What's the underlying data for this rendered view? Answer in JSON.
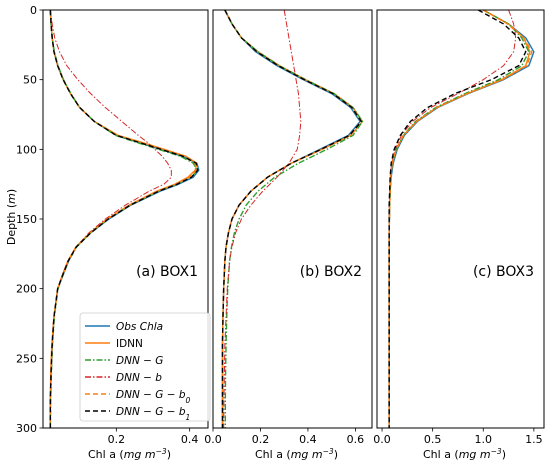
{
  "colors": {
    "obs": "#1f77b4",
    "idnn": "#ff7f0e",
    "dnn_g": "#2ca02c",
    "dnn_b": "#d62728",
    "dnn_g_b0": "#ff7f0e",
    "dnn_g_b1": "#000000"
  },
  "chart_data": {
    "type": "line",
    "ylabel": "Depth",
    "ylabel_unit": "m",
    "ylim": [
      0,
      300
    ],
    "y_inverted": true,
    "yticks": [
      0,
      50,
      100,
      150,
      200,
      250,
      300
    ],
    "legend": {
      "placement": "lower-left of panel (a)",
      "entries": [
        {
          "key": "obs",
          "label": "Obs Chla",
          "style": "solid"
        },
        {
          "key": "idnn",
          "label": "IDNN",
          "style": "solid"
        },
        {
          "key": "dnn_g",
          "label": "DNN − G",
          "style": "dashdot"
        },
        {
          "key": "dnn_b",
          "label": "DNN − b",
          "style": "dashdot"
        },
        {
          "key": "dnn_g_b0",
          "label": "DNN − G − b",
          "sub": "0",
          "style": "dashed"
        },
        {
          "key": "dnn_g_b1",
          "label": "DNN − G − b",
          "sub": "1",
          "style": "dashed"
        }
      ]
    },
    "panels": [
      {
        "annotation": "(a) BOX1",
        "xlabel": "Chl a",
        "xunit": "mg m",
        "xunit_exp": "−3",
        "xlim": [
          0,
          0.45
        ],
        "xticks": [
          0.2,
          0.4
        ],
        "xticklabels": [
          "0.2",
          "0.4"
        ],
        "depth": [
          0,
          10,
          20,
          30,
          40,
          50,
          60,
          70,
          80,
          90,
          95,
          100,
          105,
          110,
          115,
          120,
          125,
          130,
          140,
          150,
          160,
          170,
          180,
          190,
          200,
          220,
          240,
          260,
          280,
          300
        ],
        "series": {
          "obs": [
            0.02,
            0.022,
            0.025,
            0.03,
            0.04,
            0.055,
            0.075,
            0.1,
            0.14,
            0.2,
            0.26,
            0.32,
            0.38,
            0.42,
            0.425,
            0.41,
            0.37,
            0.32,
            0.24,
            0.18,
            0.13,
            0.09,
            0.07,
            0.055,
            0.04,
            0.03,
            0.025,
            0.022,
            0.02,
            0.02
          ],
          "idnn": [
            0.02,
            0.022,
            0.025,
            0.03,
            0.04,
            0.055,
            0.075,
            0.1,
            0.14,
            0.205,
            0.27,
            0.33,
            0.39,
            0.42,
            0.415,
            0.395,
            0.36,
            0.31,
            0.235,
            0.175,
            0.128,
            0.09,
            0.068,
            0.053,
            0.04,
            0.03,
            0.024,
            0.021,
            0.02,
            0.02
          ],
          "dnn_g": [
            0.02,
            0.022,
            0.025,
            0.031,
            0.041,
            0.056,
            0.076,
            0.1,
            0.14,
            0.198,
            0.255,
            0.315,
            0.375,
            0.41,
            0.42,
            0.405,
            0.365,
            0.315,
            0.238,
            0.178,
            0.13,
            0.092,
            0.07,
            0.055,
            0.041,
            0.031,
            0.026,
            0.023,
            0.021,
            0.02
          ],
          "dnn_b": [
            0.02,
            0.025,
            0.032,
            0.045,
            0.065,
            0.095,
            0.13,
            0.17,
            0.215,
            0.26,
            0.285,
            0.305,
            0.325,
            0.34,
            0.35,
            0.35,
            0.33,
            0.29,
            0.225,
            0.17,
            0.125,
            0.09,
            0.068,
            0.053,
            0.04,
            0.03,
            0.025,
            0.022,
            0.02,
            0.02
          ],
          "dnn_g_b0": [
            0.02,
            0.022,
            0.025,
            0.03,
            0.04,
            0.055,
            0.075,
            0.1,
            0.14,
            0.202,
            0.265,
            0.325,
            0.385,
            0.415,
            0.418,
            0.4,
            0.362,
            0.312,
            0.236,
            0.176,
            0.129,
            0.09,
            0.069,
            0.054,
            0.04,
            0.03,
            0.025,
            0.022,
            0.02,
            0.02
          ],
          "dnn_g_b1": [
            0.02,
            0.022,
            0.025,
            0.03,
            0.04,
            0.055,
            0.075,
            0.1,
            0.14,
            0.2,
            0.262,
            0.322,
            0.382,
            0.418,
            0.422,
            0.405,
            0.366,
            0.316,
            0.238,
            0.178,
            0.13,
            0.091,
            0.069,
            0.054,
            0.04,
            0.03,
            0.025,
            0.022,
            0.02,
            0.02
          ]
        }
      },
      {
        "annotation": "(b) BOX2",
        "xlabel": "Chl a",
        "xunit": "mg m",
        "xunit_exp": "−3",
        "xlim": [
          0,
          0.67
        ],
        "xticks": [
          0.0,
          0.2,
          0.4,
          0.6
        ],
        "xticklabels": [
          "0.0",
          "0.2",
          "0.4",
          "0.6"
        ],
        "depth": [
          0,
          10,
          20,
          30,
          40,
          50,
          60,
          70,
          80,
          90,
          100,
          110,
          120,
          130,
          140,
          150,
          160,
          170,
          180,
          200,
          220,
          240,
          260,
          280,
          300
        ],
        "series": {
          "obs": [
            0.05,
            0.08,
            0.12,
            0.18,
            0.27,
            0.38,
            0.5,
            0.58,
            0.62,
            0.57,
            0.45,
            0.33,
            0.23,
            0.16,
            0.11,
            0.08,
            0.065,
            0.055,
            0.05,
            0.045,
            0.042,
            0.04,
            0.04,
            0.04,
            0.04
          ],
          "idnn": [
            0.05,
            0.08,
            0.12,
            0.19,
            0.28,
            0.39,
            0.51,
            0.59,
            0.63,
            0.58,
            0.46,
            0.33,
            0.23,
            0.16,
            0.11,
            0.08,
            0.065,
            0.055,
            0.05,
            0.045,
            0.042,
            0.04,
            0.04,
            0.04,
            0.04
          ],
          "dnn_g": [
            0.05,
            0.08,
            0.12,
            0.19,
            0.28,
            0.39,
            0.51,
            0.59,
            0.63,
            0.59,
            0.48,
            0.36,
            0.26,
            0.19,
            0.14,
            0.11,
            0.09,
            0.078,
            0.07,
            0.062,
            0.058,
            0.055,
            0.053,
            0.052,
            0.052
          ],
          "dnn_b": [
            0.3,
            0.31,
            0.32,
            0.33,
            0.34,
            0.35,
            0.36,
            0.365,
            0.37,
            0.365,
            0.355,
            0.32,
            0.27,
            0.21,
            0.16,
            0.12,
            0.095,
            0.08,
            0.07,
            0.06,
            0.055,
            0.05,
            0.048,
            0.046,
            0.045
          ],
          "dnn_g_b0": [
            0.05,
            0.08,
            0.12,
            0.185,
            0.275,
            0.385,
            0.505,
            0.585,
            0.625,
            0.575,
            0.455,
            0.33,
            0.23,
            0.16,
            0.11,
            0.08,
            0.065,
            0.055,
            0.05,
            0.045,
            0.042,
            0.04,
            0.04,
            0.04,
            0.04
          ],
          "dnn_g_b1": [
            0.05,
            0.08,
            0.12,
            0.185,
            0.275,
            0.385,
            0.505,
            0.585,
            0.625,
            0.575,
            0.455,
            0.33,
            0.23,
            0.16,
            0.11,
            0.08,
            0.065,
            0.055,
            0.05,
            0.045,
            0.042,
            0.04,
            0.04,
            0.04,
            0.04
          ]
        }
      },
      {
        "annotation": "(c) BOX3",
        "xlabel": "Chl a",
        "xunit": "mg m",
        "xunit_exp": "−3",
        "xlim": [
          -0.05,
          1.6
        ],
        "xticks": [
          0.0,
          0.5,
          1.0,
          1.5
        ],
        "xticklabels": [
          "0.0",
          "0.5",
          "1.0",
          "1.5"
        ],
        "depth": [
          0,
          10,
          20,
          30,
          40,
          50,
          60,
          70,
          80,
          90,
          100,
          110,
          120,
          130,
          140,
          160,
          180,
          200,
          250,
          300
        ],
        "series": {
          "obs": [
            1.0,
            1.25,
            1.42,
            1.5,
            1.45,
            1.2,
            0.85,
            0.55,
            0.35,
            0.22,
            0.15,
            0.11,
            0.09,
            0.08,
            0.075,
            0.07,
            0.07,
            0.07,
            0.07,
            0.07
          ],
          "idnn": [
            1.0,
            1.25,
            1.4,
            1.46,
            1.42,
            1.18,
            0.84,
            0.54,
            0.34,
            0.21,
            0.14,
            0.1,
            0.085,
            0.08,
            0.075,
            0.07,
            0.07,
            0.07,
            0.07,
            0.07
          ],
          "dnn_g": [
            1.0,
            1.25,
            1.38,
            1.45,
            1.38,
            1.15,
            0.82,
            0.53,
            0.33,
            0.21,
            0.14,
            0.1,
            0.085,
            0.08,
            0.075,
            0.07,
            0.07,
            0.07,
            0.07,
            0.07
          ],
          "dnn_b": [
            1.25,
            1.3,
            1.32,
            1.3,
            1.2,
            1.0,
            0.75,
            0.48,
            0.3,
            0.19,
            0.13,
            0.095,
            0.08,
            0.075,
            0.07,
            0.07,
            0.07,
            0.07,
            0.07,
            0.07
          ],
          "dnn_g_b0": [
            1.0,
            1.24,
            1.4,
            1.48,
            1.43,
            1.19,
            0.84,
            0.54,
            0.34,
            0.21,
            0.14,
            0.1,
            0.085,
            0.08,
            0.075,
            0.07,
            0.07,
            0.07,
            0.07,
            0.07
          ],
          "dnn_g_b1": [
            0.95,
            1.2,
            1.35,
            1.42,
            1.35,
            1.08,
            0.72,
            0.45,
            0.28,
            0.18,
            0.12,
            0.09,
            0.08,
            0.075,
            0.07,
            0.07,
            0.07,
            0.07,
            0.07,
            0.07
          ]
        }
      }
    ]
  }
}
